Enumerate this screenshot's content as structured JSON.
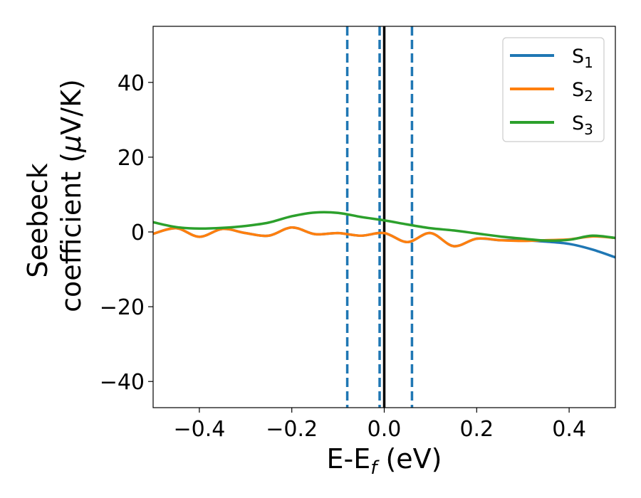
{
  "chart_data": {
    "type": "line",
    "title": "",
    "xlabel": {
      "main": "E-E",
      "sub": "f",
      "rest": " (eV)"
    },
    "ylabel": {
      "line1": "Seebeck",
      "line2_pre": "coefficient  (",
      "line2_mu": "μ",
      "line2_post": "V/K)"
    },
    "xlim": [
      -0.5,
      0.5
    ],
    "ylim": [
      -47,
      55
    ],
    "xticks": [
      -0.4,
      -0.2,
      0.0,
      0.2,
      0.4
    ],
    "xtick_labels": [
      "−0.4",
      "−0.2",
      "0.0",
      "0.2",
      "0.4"
    ],
    "yticks": [
      -40,
      -20,
      0,
      20,
      40
    ],
    "ytick_labels": [
      "−40",
      "−20",
      "0",
      "20",
      "40"
    ],
    "grid": false,
    "legend": {
      "position": "top-right"
    },
    "vlines": [
      {
        "x": -0.08,
        "style": "dashed",
        "color": "#1f77b4"
      },
      {
        "x": -0.01,
        "style": "dashed",
        "color": "#1f77b4"
      },
      {
        "x": 0.06,
        "style": "dashed",
        "color": "#1f77b4"
      },
      {
        "x": 0.0,
        "style": "solid",
        "color": "#000000"
      }
    ],
    "series": [
      {
        "name": "S",
        "sub": "1",
        "color": "#1f77b4",
        "x": [
          -0.5,
          -0.45,
          -0.4,
          -0.35,
          -0.3,
          -0.25,
          -0.2,
          -0.15,
          -0.1,
          -0.05,
          0.0,
          0.05,
          0.1,
          0.15,
          0.2,
          0.25,
          0.3,
          0.35,
          0.4,
          0.45,
          0.5
        ],
        "y": [
          -0.5,
          1.0,
          -1.3,
          0.8,
          -0.3,
          -1.0,
          1.2,
          -0.6,
          -0.3,
          -1.0,
          -0.3,
          -2.7,
          -0.3,
          -3.8,
          -1.8,
          -2.2,
          -2.2,
          -2.6,
          -3.2,
          -4.7,
          -6.8
        ]
      },
      {
        "name": "S",
        "sub": "2",
        "color": "#ff7f0e",
        "x": [
          -0.5,
          -0.45,
          -0.4,
          -0.35,
          -0.3,
          -0.25,
          -0.2,
          -0.15,
          -0.1,
          -0.05,
          0.0,
          0.05,
          0.1,
          0.15,
          0.2,
          0.25,
          0.3,
          0.35,
          0.4,
          0.45,
          0.5
        ],
        "y": [
          -0.5,
          1.0,
          -1.3,
          0.8,
          -0.3,
          -1.0,
          1.2,
          -0.6,
          -0.3,
          -1.0,
          -0.3,
          -2.7,
          -0.3,
          -3.8,
          -1.8,
          -2.2,
          -2.4,
          -2.2,
          -2.0,
          -1.2,
          -1.6
        ]
      },
      {
        "name": "S",
        "sub": "3",
        "color": "#2ca02c",
        "x": [
          -0.5,
          -0.45,
          -0.4,
          -0.35,
          -0.3,
          -0.25,
          -0.2,
          -0.15,
          -0.1,
          -0.05,
          0.0,
          0.05,
          0.1,
          0.15,
          0.2,
          0.25,
          0.3,
          0.35,
          0.4,
          0.45,
          0.5
        ],
        "y": [
          2.6,
          1.3,
          0.9,
          1.1,
          1.6,
          2.5,
          4.2,
          5.2,
          5.1,
          4.0,
          3.1,
          2.0,
          1.0,
          0.4,
          -0.4,
          -1.2,
          -1.8,
          -2.3,
          -2.1,
          -1.0,
          -1.6
        ]
      }
    ]
  }
}
